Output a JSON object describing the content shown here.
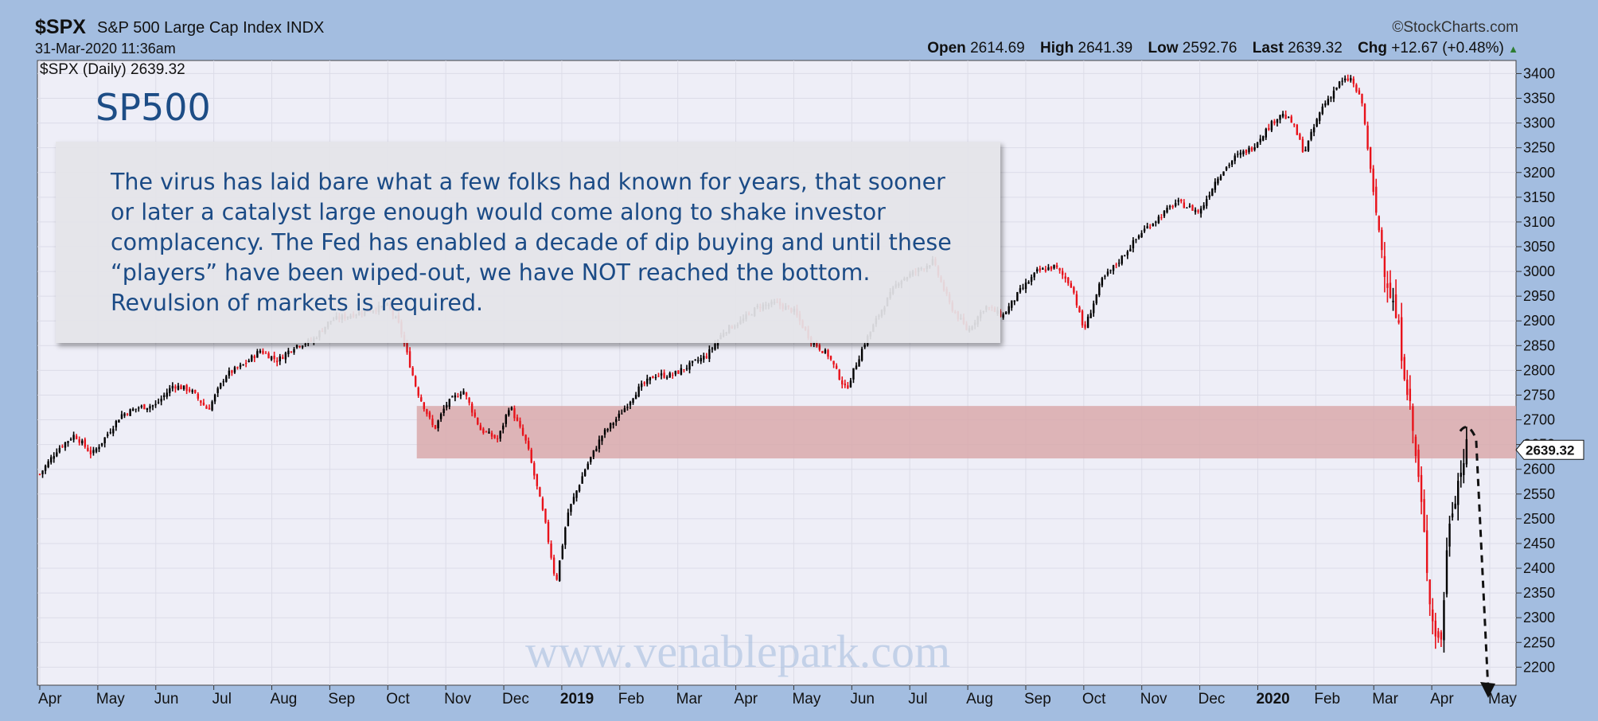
{
  "header": {
    "symbol": "$SPX",
    "name": "S&P 500 Large Cap Index INDX",
    "datetime": "31-Mar-2020 11:36am",
    "credit": "©StockCharts.com",
    "open_label": "Open",
    "open": "2614.69",
    "high_label": "High",
    "high": "2641.39",
    "low_label": "Low",
    "low": "2592.76",
    "last_label": "Last",
    "last": "2639.32",
    "chg_label": "Chg",
    "chg": "+12.67 (+0.48%)",
    "chg_arrow": "▲"
  },
  "legend": "$SPX (Daily) 2639.32",
  "title": "SP500",
  "annotation": "The virus has laid bare what a few folks had known for years, that sooner or later a catalyst large enough would come along to shake investor complacency. The Fed has enabled a decade of dip buying and until these “players” have been wiped-out, we have NOT reached the bottom. Revulsion of markets is required.",
  "watermark": "www.venablepark.com",
  "price_tag": "2639.32",
  "colors": {
    "up": "#000000",
    "down": "#e8121a",
    "zone": "#d9a9ab",
    "plot_bg": "#eeeef7",
    "frame": "#a3bde0",
    "annotation_text": "#1b4b86"
  },
  "chart_data": {
    "type": "line",
    "ylim": [
      2170,
      3420
    ],
    "y_ticks": [
      3400,
      3350,
      3300,
      3250,
      3200,
      3150,
      3100,
      3050,
      3000,
      2950,
      2900,
      2850,
      2800,
      2750,
      2700,
      2650,
      2600,
      2550,
      2500,
      2450,
      2400,
      2350,
      2300,
      2250,
      2200
    ],
    "x_labels": [
      {
        "label": "Apr",
        "t": 0.0
      },
      {
        "label": "May",
        "t": 1.0
      },
      {
        "label": "Jun",
        "t": 2.0
      },
      {
        "label": "Jul",
        "t": 3.0
      },
      {
        "label": "Aug",
        "t": 4.0
      },
      {
        "label": "Sep",
        "t": 5.0
      },
      {
        "label": "Oct",
        "t": 6.0
      },
      {
        "label": "Nov",
        "t": 7.0
      },
      {
        "label": "Dec",
        "t": 8.0
      },
      {
        "label": "2019",
        "t": 9.0,
        "bold": true
      },
      {
        "label": "Feb",
        "t": 10.0
      },
      {
        "label": "Mar",
        "t": 11.0
      },
      {
        "label": "Apr",
        "t": 12.0
      },
      {
        "label": "May",
        "t": 13.0
      },
      {
        "label": "Jun",
        "t": 14.0
      },
      {
        "label": "Jul",
        "t": 15.0
      },
      {
        "label": "Aug",
        "t": 16.0
      },
      {
        "label": "Sep",
        "t": 17.0
      },
      {
        "label": "Oct",
        "t": 18.0
      },
      {
        "label": "Nov",
        "t": 19.0
      },
      {
        "label": "Dec",
        "t": 20.0
      },
      {
        "label": "2020",
        "t": 21.0,
        "bold": true
      },
      {
        "label": "Feb",
        "t": 22.0
      },
      {
        "label": "Mar",
        "t": 23.0
      },
      {
        "label": "Apr",
        "t": 24.0
      },
      {
        "label": "May",
        "t": 25.0
      }
    ],
    "series": [
      {
        "points": [
          [
            0.0,
            2590
          ],
          [
            0.3,
            2640
          ],
          [
            0.6,
            2670
          ],
          [
            0.9,
            2630
          ],
          [
            1.1,
            2660
          ],
          [
            1.4,
            2710
          ],
          [
            1.7,
            2725
          ],
          [
            2.0,
            2730
          ],
          [
            2.3,
            2770
          ],
          [
            2.6,
            2760
          ],
          [
            2.9,
            2720
          ],
          [
            3.2,
            2790
          ],
          [
            3.5,
            2810
          ],
          [
            3.8,
            2840
          ],
          [
            4.1,
            2820
          ],
          [
            4.4,
            2850
          ],
          [
            4.7,
            2860
          ],
          [
            5.0,
            2900
          ],
          [
            5.3,
            2910
          ],
          [
            5.6,
            2920
          ],
          [
            6.0,
            2930
          ],
          [
            6.2,
            2890
          ],
          [
            6.5,
            2760
          ],
          [
            6.8,
            2680
          ],
          [
            7.0,
            2730
          ],
          [
            7.3,
            2760
          ],
          [
            7.6,
            2680
          ],
          [
            7.9,
            2660
          ],
          [
            8.1,
            2730
          ],
          [
            8.4,
            2650
          ],
          [
            8.7,
            2500
          ],
          [
            8.9,
            2370
          ],
          [
            9.1,
            2510
          ],
          [
            9.4,
            2600
          ],
          [
            9.7,
            2670
          ],
          [
            10.0,
            2710
          ],
          [
            10.3,
            2760
          ],
          [
            10.6,
            2790
          ],
          [
            10.9,
            2790
          ],
          [
            11.2,
            2810
          ],
          [
            11.5,
            2830
          ],
          [
            11.8,
            2880
          ],
          [
            12.1,
            2900
          ],
          [
            12.4,
            2930
          ],
          [
            12.7,
            2935
          ],
          [
            13.0,
            2920
          ],
          [
            13.3,
            2860
          ],
          [
            13.6,
            2830
          ],
          [
            13.9,
            2760
          ],
          [
            14.2,
            2850
          ],
          [
            14.5,
            2920
          ],
          [
            14.8,
            2980
          ],
          [
            15.1,
            3000
          ],
          [
            15.4,
            3020
          ],
          [
            15.7,
            2930
          ],
          [
            16.0,
            2880
          ],
          [
            16.3,
            2930
          ],
          [
            16.6,
            2910
          ],
          [
            16.9,
            2960
          ],
          [
            17.2,
            3000
          ],
          [
            17.5,
            3010
          ],
          [
            17.8,
            2970
          ],
          [
            18.0,
            2880
          ],
          [
            18.3,
            2980
          ],
          [
            18.6,
            3020
          ],
          [
            19.0,
            3080
          ],
          [
            19.3,
            3110
          ],
          [
            19.6,
            3140
          ],
          [
            20.0,
            3120
          ],
          [
            20.3,
            3190
          ],
          [
            20.6,
            3230
          ],
          [
            20.9,
            3250
          ],
          [
            21.1,
            3280
          ],
          [
            21.4,
            3320
          ],
          [
            21.6,
            3300
          ],
          [
            21.8,
            3240
          ],
          [
            22.1,
            3330
          ],
          [
            22.4,
            3380
          ],
          [
            22.6,
            3390
          ],
          [
            22.8,
            3340
          ],
          [
            23.0,
            3150
          ],
          [
            23.2,
            3000
          ],
          [
            23.4,
            2900
          ],
          [
            23.6,
            2750
          ],
          [
            23.8,
            2550
          ],
          [
            24.0,
            2300
          ],
          [
            24.15,
            2240
          ],
          [
            24.3,
            2500
          ],
          [
            24.5,
            2600
          ],
          [
            24.6,
            2639
          ]
        ]
      }
    ],
    "resistance_zone": [
      2622,
      2728
    ],
    "projection": [
      [
        24.6,
        2690
      ],
      [
        25.0,
        2170
      ]
    ]
  }
}
